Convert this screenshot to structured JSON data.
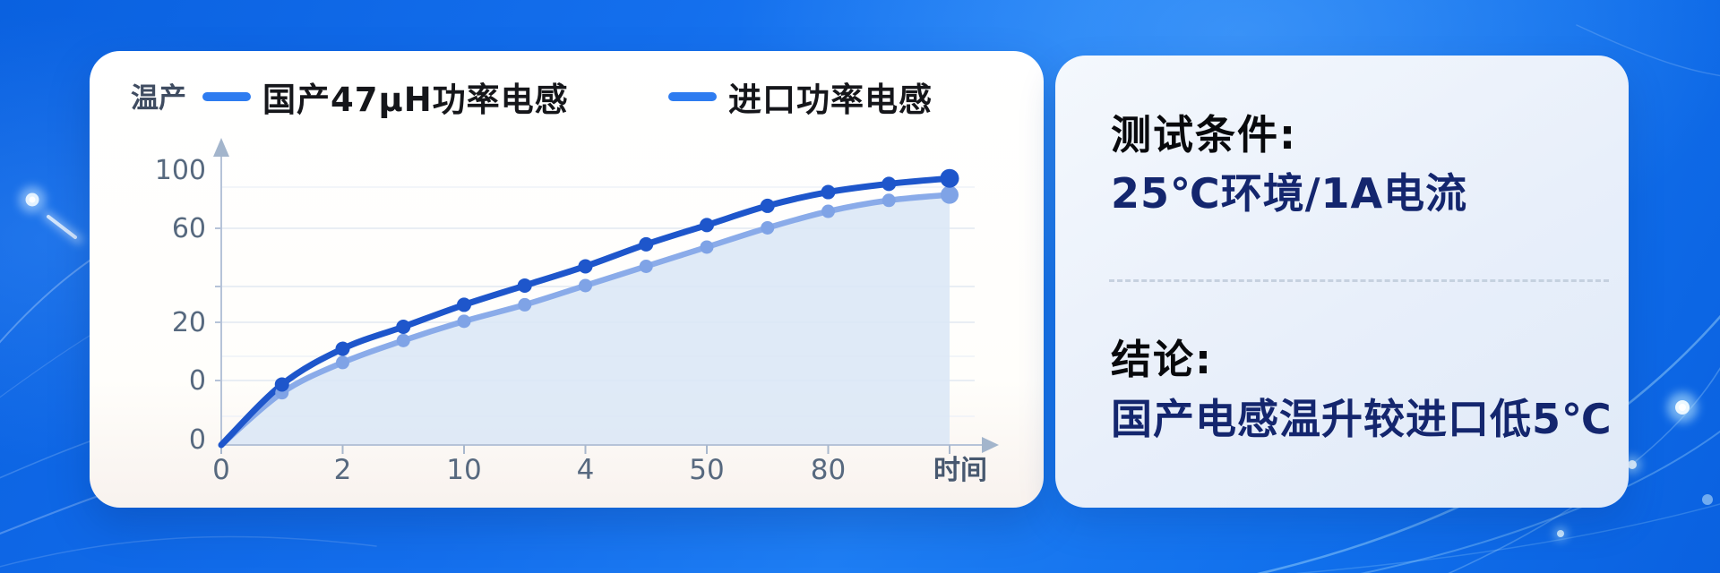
{
  "chart_card": {
    "y_axis_title": "温产",
    "legend": [
      {
        "label": "国产47μH功率电感",
        "color": "#2e7cf0"
      },
      {
        "label": "进口功率电感",
        "color": "#2e7cf0"
      }
    ]
  },
  "chart_data": {
    "type": "line",
    "x_axis_label": "时间",
    "y_axis_title": "温产",
    "x_tick_labels": [
      "0",
      "2",
      "10",
      "4",
      "50",
      "80"
    ],
    "y_tick_labels": [
      "100",
      "60",
      "20",
      "0",
      "0"
    ],
    "x_points": [
      0,
      1,
      2,
      3,
      4,
      5,
      6,
      7,
      8,
      9,
      10,
      11,
      12
    ],
    "ylim": [
      0,
      105
    ],
    "grid": true,
    "legend_position": "top",
    "series": [
      {
        "name": "进口功率电感",
        "line_color": "#1e56cb",
        "values": [
          0,
          22,
          35,
          43,
          51,
          58,
          65,
          73,
          80,
          87,
          92,
          95,
          97
        ]
      },
      {
        "name": "国产47μH功率电感",
        "line_color": "#8aabe9",
        "area_color": "#d9e6f6",
        "values": [
          0,
          19,
          30,
          38,
          45,
          51,
          58,
          65,
          72,
          79,
          85,
          89,
          91
        ]
      }
    ]
  },
  "info_panel": {
    "condition_title": "测试条件:",
    "condition_value": "25℃环境/1A电流",
    "conclusion_title": "结论:",
    "conclusion_value": "国产电感温升较进口低5℃"
  },
  "colors": {
    "background_blue": "#1374ef",
    "card_white": "#ffffff",
    "panel_light_blue": "#e8effa",
    "legend_swatch": "#2e7cf0",
    "imported_line": "#1e56cb",
    "domestic_line": "#8aabe9",
    "area_fill": "#d9e6f6",
    "axis": "#b6c3d8",
    "tick_text": "#57697f",
    "title_text": "#08090c",
    "value_text": "#14266e"
  }
}
